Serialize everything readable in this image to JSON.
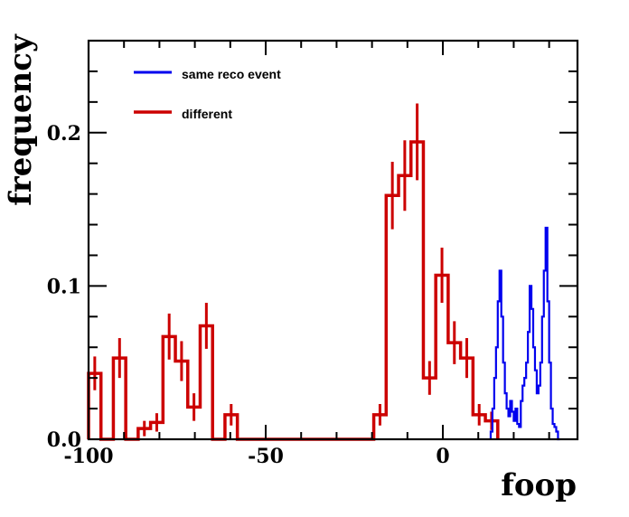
{
  "chart_data": {
    "type": "histogram",
    "xlabel": "foop",
    "ylabel": "frequency",
    "xlim": [
      -100,
      38
    ],
    "ylim": [
      0,
      0.26
    ],
    "x_ticks": [
      -100,
      -50,
      0
    ],
    "x_tick_labels": [
      "-100",
      "-50",
      "0"
    ],
    "y_ticks": [
      0.0,
      0.1,
      0.2
    ],
    "y_tick_labels": [
      "0.0",
      "0.1",
      "0.2"
    ],
    "legend": {
      "placement": "top-left",
      "entries": [
        {
          "label": "same reco event",
          "color": "#0000ee"
        },
        {
          "label": "different",
          "color": "#cc0000"
        }
      ]
    },
    "series": [
      {
        "name": "different",
        "color": "#cc0000",
        "bin_width": 3.5,
        "bin_starts": [
          -100,
          -96.5,
          -93,
          -89.5,
          -86,
          -82.5,
          -79,
          -75.5,
          -72,
          -68.5,
          -65,
          -61.5,
          -58,
          -54.5,
          -51,
          -47.5,
          -44,
          -40.5,
          -37,
          -33.5,
          -30,
          -26.5,
          -23,
          -19.5,
          -16,
          -12.5,
          -9,
          -5.5,
          -2,
          1.5,
          5,
          8.5,
          12
        ],
        "values": [
          0.043,
          0.0,
          0.053,
          0.0,
          0.007,
          0.011,
          0.067,
          0.051,
          0.021,
          0.074,
          0.0,
          0.016,
          0.0,
          0.0,
          0.0,
          0.0,
          0.0,
          0.0,
          0.0,
          0.0,
          0.0,
          0.0,
          0.0,
          0.016,
          0.159,
          0.172,
          0.194,
          0.04,
          0.107,
          0.063,
          0.053,
          0.016,
          0.012
        ],
        "errors": [
          0.011,
          0.0,
          0.013,
          0.0,
          0.005,
          0.006,
          0.015,
          0.013,
          0.009,
          0.015,
          0.0,
          0.007,
          0.0,
          0.0,
          0.0,
          0.0,
          0.0,
          0.0,
          0.0,
          0.0,
          0.0,
          0.0,
          0.0,
          0.007,
          0.022,
          0.023,
          0.025,
          0.011,
          0.018,
          0.014,
          0.013,
          0.007,
          0.006
        ]
      },
      {
        "name": "same reco event",
        "color": "#0000ee",
        "bin_width": 0.5,
        "bin_start": 13.5,
        "values": [
          0.005,
          0.02,
          0.04,
          0.06,
          0.09,
          0.11,
          0.08,
          0.05,
          0.03,
          0.02,
          0.015,
          0.025,
          0.018,
          0.012,
          0.02,
          0.01,
          0.008,
          0.025,
          0.035,
          0.04,
          0.05,
          0.07,
          0.1,
          0.085,
          0.06,
          0.045,
          0.03,
          0.035,
          0.05,
          0.08,
          0.11,
          0.138,
          0.09,
          0.05,
          0.02,
          0.01,
          0.008,
          0.005,
          0.0
        ]
      }
    ]
  }
}
